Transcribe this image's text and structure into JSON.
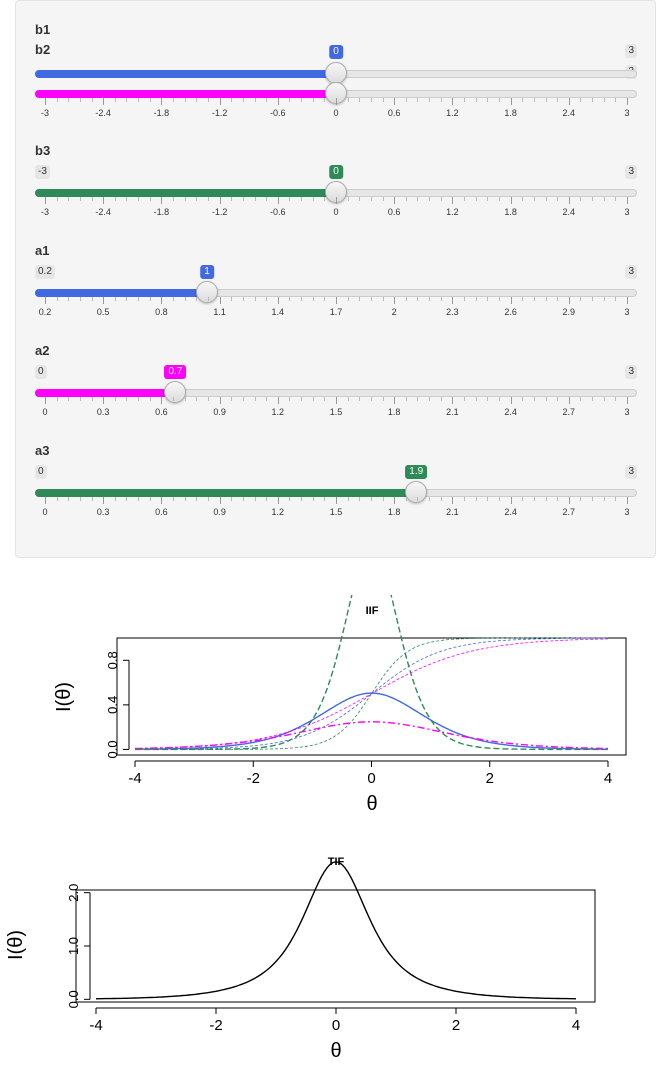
{
  "sliders": {
    "b1": {
      "label": "b1"
    },
    "b2": {
      "label": "b2",
      "min": "-3",
      "max": "3",
      "value": "0",
      "fraction": 0.5,
      "color": "#ff00ff",
      "ticks": [
        "-3",
        "-2.4",
        "-1.8",
        "-1.2",
        "-0.6",
        "0",
        "0.6",
        "1.2",
        "1.8",
        "2.4",
        "3"
      ]
    },
    "b1_value": {
      "value": "0",
      "fraction": 0.5,
      "color": "#4169e1",
      "max": "3"
    },
    "b3": {
      "label": "b3",
      "min": "-3",
      "max": "3",
      "value": "0",
      "fraction": 0.5,
      "color": "#2e8b57",
      "ticks": [
        "-3",
        "-2.4",
        "-1.8",
        "-1.2",
        "-0.6",
        "0",
        "0.6",
        "1.2",
        "1.8",
        "2.4",
        "3"
      ]
    },
    "a1": {
      "label": "a1",
      "min": "0.2",
      "max": "3",
      "value": "1",
      "fraction": 0.2857,
      "color": "#4169e1",
      "ticks": [
        "0.2",
        "0.5",
        "0.8",
        "1.1",
        "1.4",
        "1.7",
        "2",
        "2.3",
        "2.6",
        "2.9",
        "3"
      ]
    },
    "a2": {
      "label": "a2",
      "min": "0",
      "max": "3",
      "value": "0.7",
      "fraction": 0.2333,
      "color": "#ff00ff",
      "ticks": [
        "0",
        "0.3",
        "0.6",
        "0.9",
        "1.2",
        "1.5",
        "1.8",
        "2.1",
        "2.4",
        "2.7",
        "3"
      ]
    },
    "a3": {
      "label": "a3",
      "min": "0",
      "max": "3",
      "value": "1.9",
      "fraction": 0.6333,
      "color": "#2e8b57",
      "ticks": [
        "0",
        "0.3",
        "0.6",
        "0.9",
        "1.2",
        "1.5",
        "1.8",
        "2.1",
        "2.4",
        "2.7",
        "3"
      ]
    }
  },
  "chart_data": [
    {
      "type": "line",
      "title": "IIF",
      "xlabel": "θ",
      "ylabel": "I(θ)",
      "xlim": [
        -4,
        4
      ],
      "ylim": [
        0,
        1
      ],
      "xticks": [
        "-4",
        "-2",
        "0",
        "2",
        "4"
      ],
      "yticks": [
        "0.0",
        "0.4",
        "0.8"
      ],
      "grid": false,
      "series": [
        {
          "color": "#4169e1",
          "style": "solid",
          "a": 1,
          "b": 0,
          "kind": "info"
        },
        {
          "color": "#ff00ff",
          "style": "dashdot",
          "a": 0.7,
          "b": 0,
          "kind": "info"
        },
        {
          "color": "#2e8b57",
          "style": "dashed",
          "a": 1.9,
          "b": 0,
          "kind": "info"
        },
        {
          "color": "#4169e1",
          "style": "thin-dashed",
          "a": 1,
          "b": 0,
          "kind": "icc"
        },
        {
          "color": "#ff00ff",
          "style": "thin-dashed",
          "a": 0.7,
          "b": 0,
          "kind": "icc"
        },
        {
          "color": "#2e8b57",
          "style": "thin-dashed",
          "a": 1.9,
          "b": 0,
          "kind": "icc"
        }
      ]
    },
    {
      "type": "line",
      "title": "TIF",
      "xlabel": "θ",
      "ylabel": "I(θ)",
      "xlim": [
        -4,
        4
      ],
      "ylim": [
        0,
        2
      ],
      "xticks": [
        "-4",
        "-2",
        "0",
        "2",
        "4"
      ],
      "yticks": [
        "0.0",
        "1.0",
        "2.0"
      ],
      "grid": false,
      "series": [
        {
          "color": "#000000",
          "style": "solid",
          "kind": "total"
        }
      ]
    }
  ]
}
